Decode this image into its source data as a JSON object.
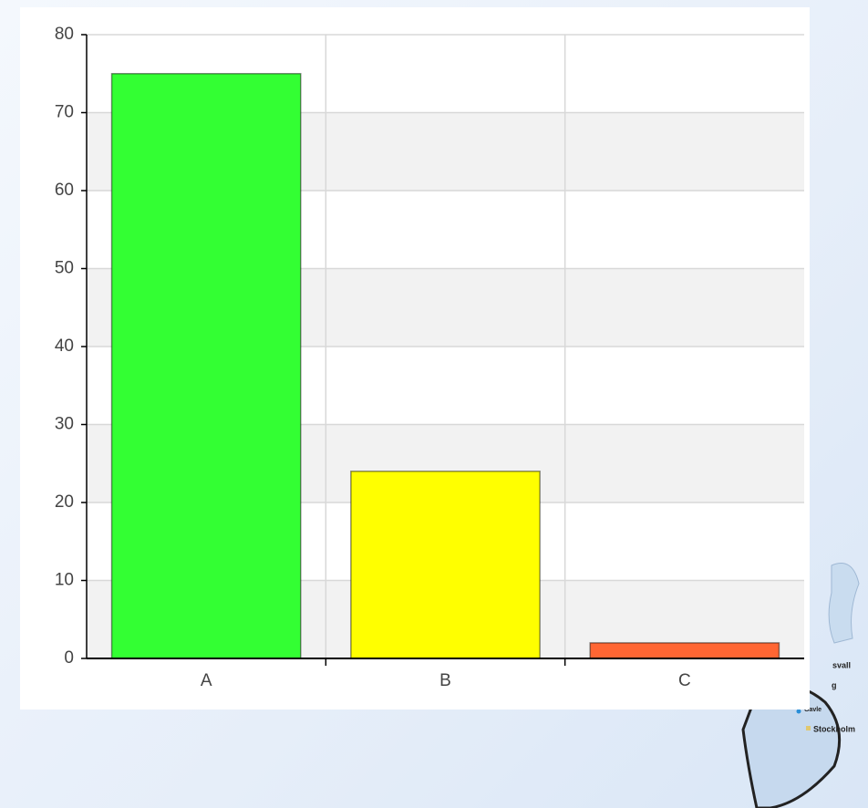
{
  "chart_data": {
    "type": "bar",
    "categories": [
      "A",
      "B",
      "C"
    ],
    "values": [
      75,
      24,
      2
    ],
    "colors": [
      "#33ff33",
      "#ffff00",
      "#ff6633"
    ],
    "ylim": [
      0,
      80
    ],
    "yticks": [
      0,
      10,
      20,
      30,
      40,
      50,
      60,
      70,
      80
    ],
    "grid": true
  },
  "map_labels": [
    "svall",
    "g",
    "Gavle",
    "Stockholm"
  ]
}
